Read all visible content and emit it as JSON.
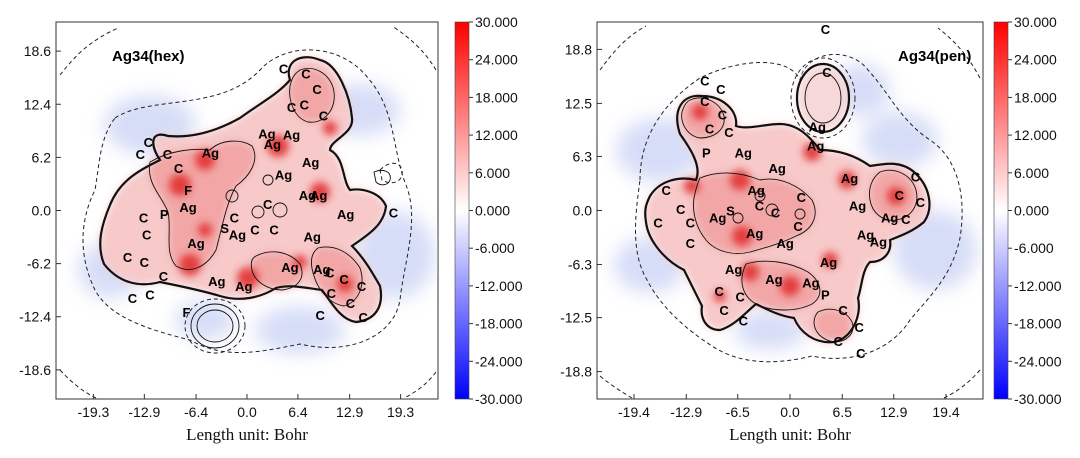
{
  "chart_data": [
    {
      "type": "heatmap",
      "title": "Ag34(hex)",
      "xlabel": "Length unit: Bohr",
      "ylabel": "",
      "xticks": [
        -19.3,
        -12.9,
        -6.4,
        0.0,
        6.4,
        12.9,
        19.3
      ],
      "yticks": [
        18.6,
        12.4,
        6.2,
        0.0,
        -6.2,
        -12.4,
        -18.6
      ],
      "xlim": [
        -24.0,
        24.0
      ],
      "ylim": [
        -22.0,
        22.0
      ],
      "colorbar": {
        "range": [
          -30.0,
          30.0
        ],
        "ticks": [
          30.0,
          24.0,
          18.0,
          12.0,
          6.0,
          0.0,
          -6.0,
          -12.0,
          -18.0,
          -24.0,
          -30.0
        ],
        "low_color": "#0000ff",
        "mid_color": "#ffffff",
        "high_color": "#ff0000"
      },
      "atom_labels": [
        {
          "label": "C",
          "x": 4.6,
          "y": 16.4
        },
        {
          "label": "C",
          "x": 7.4,
          "y": 15.8
        },
        {
          "label": "C",
          "x": 8.8,
          "y": 14.0
        },
        {
          "label": "C",
          "x": 5.6,
          "y": 11.9
        },
        {
          "label": "C",
          "x": 7.2,
          "y": 12.2
        },
        {
          "label": "C",
          "x": 9.6,
          "y": 10.9
        },
        {
          "label": "Ag",
          "x": 2.5,
          "y": 8.8
        },
        {
          "label": "Ag",
          "x": 5.6,
          "y": 8.7
        },
        {
          "label": "Ag",
          "x": 3.2,
          "y": 7.6
        },
        {
          "label": "Ag",
          "x": -4.6,
          "y": 6.6
        },
        {
          "label": "Ag",
          "x": 4.6,
          "y": 4.0
        },
        {
          "label": "Ag",
          "x": 8.0,
          "y": 5.5
        },
        {
          "label": "Ag",
          "x": 7.6,
          "y": 1.6
        },
        {
          "label": "Ag",
          "x": 9.0,
          "y": 1.6
        },
        {
          "label": "C",
          "x": -12.4,
          "y": 7.8
        },
        {
          "label": "C",
          "x": -13.4,
          "y": 6.4
        },
        {
          "label": "C",
          "x": -10.0,
          "y": 6.4
        },
        {
          "label": "C",
          "x": -8.6,
          "y": 4.8
        },
        {
          "label": "F",
          "x": -7.4,
          "y": 2.2
        },
        {
          "label": "Ag",
          "x": -7.4,
          "y": 0.2
        },
        {
          "label": "Ag",
          "x": -6.4,
          "y": -4.0
        },
        {
          "label": "C",
          "x": -13.0,
          "y": -1.0
        },
        {
          "label": "P",
          "x": -10.4,
          "y": -0.6
        },
        {
          "label": "C",
          "x": -12.6,
          "y": -3.0
        },
        {
          "label": "C",
          "x": -15.0,
          "y": -5.6
        },
        {
          "label": "C",
          "x": -12.9,
          "y": -6.2
        },
        {
          "label": "C",
          "x": -10.5,
          "y": -7.8
        },
        {
          "label": "C",
          "x": -14.4,
          "y": -10.4
        },
        {
          "label": "C",
          "x": -12.2,
          "y": -10.0
        },
        {
          "label": "F",
          "x": -7.6,
          "y": -12.0
        },
        {
          "label": "C",
          "x": -1.6,
          "y": -1.0
        },
        {
          "label": "S",
          "x": -2.8,
          "y": -2.2
        },
        {
          "label": "Ag",
          "x": -1.2,
          "y": -3.0
        },
        {
          "label": "C",
          "x": 1.0,
          "y": -2.4
        },
        {
          "label": "C",
          "x": 2.6,
          "y": 0.6
        },
        {
          "label": "C",
          "x": 3.4,
          "y": -2.4
        },
        {
          "label": "Ag",
          "x": 8.2,
          "y": -3.2
        },
        {
          "label": "Ag",
          "x": 12.4,
          "y": -0.6
        },
        {
          "label": "Ag",
          "x": 5.4,
          "y": -6.8
        },
        {
          "label": "Ag",
          "x": 9.4,
          "y": -7.0
        },
        {
          "label": "Ag",
          "x": -3.8,
          "y": -8.4
        },
        {
          "label": "Ag",
          "x": -0.4,
          "y": -9.0
        },
        {
          "label": "C",
          "x": 10.4,
          "y": -7.4
        },
        {
          "label": "C",
          "x": 12.2,
          "y": -8.2
        },
        {
          "label": "C",
          "x": 10.6,
          "y": -9.8
        },
        {
          "label": "C",
          "x": 14.4,
          "y": -9.0
        },
        {
          "label": "C",
          "x": 13.0,
          "y": -11.0
        },
        {
          "label": "C",
          "x": 14.6,
          "y": -12.6
        },
        {
          "label": "C",
          "x": 9.2,
          "y": -12.4
        },
        {
          "label": "C",
          "x": 18.4,
          "y": -0.4
        }
      ]
    },
    {
      "type": "heatmap",
      "title": "Ag34(pen)",
      "xlabel": "Length unit: Bohr",
      "ylabel": "",
      "xticks": [
        -19.4,
        -12.9,
        -6.5,
        0.0,
        6.5,
        12.9,
        19.4
      ],
      "yticks": [
        18.8,
        12.5,
        6.3,
        0.0,
        -6.3,
        -12.5,
        -18.8
      ],
      "xlim": [
        -24.0,
        24.0
      ],
      "ylim": [
        -22.0,
        22.0
      ],
      "colorbar": {
        "range": [
          -30.0,
          30.0
        ],
        "ticks": [
          30.0,
          24.0,
          18.0,
          12.0,
          6.0,
          0.0,
          -6.0,
          -12.0,
          -18.0,
          -24.0,
          -30.0
        ],
        "low_color": "#0000ff",
        "mid_color": "#ffffff",
        "high_color": "#ff0000"
      },
      "atom_labels": [
        {
          "label": "C",
          "x": 4.4,
          "y": 21.0
        },
        {
          "label": "C",
          "x": 4.6,
          "y": 16.0
        },
        {
          "label": "C",
          "x": -10.6,
          "y": 15.0
        },
        {
          "label": "C",
          "x": -8.6,
          "y": 14.0
        },
        {
          "label": "C",
          "x": -10.6,
          "y": 12.6
        },
        {
          "label": "C",
          "x": -8.4,
          "y": 11.0
        },
        {
          "label": "C",
          "x": -10.0,
          "y": 9.4
        },
        {
          "label": "C",
          "x": -7.6,
          "y": 9.0
        },
        {
          "label": "P",
          "x": -10.4,
          "y": 6.6
        },
        {
          "label": "Ag",
          "x": -5.8,
          "y": 6.6
        },
        {
          "label": "Ag",
          "x": 3.4,
          "y": 9.6
        },
        {
          "label": "Ag",
          "x": 3.2,
          "y": 7.4
        },
        {
          "label": "Ag",
          "x": -1.6,
          "y": 4.8
        },
        {
          "label": "Ag",
          "x": -4.2,
          "y": 2.2
        },
        {
          "label": "Ag",
          "x": 7.4,
          "y": 3.6
        },
        {
          "label": "Ag",
          "x": 8.4,
          "y": 0.4
        },
        {
          "label": "C",
          "x": -15.4,
          "y": 2.2
        },
        {
          "label": "C",
          "x": -13.6,
          "y": 0.0
        },
        {
          "label": "C",
          "x": -16.4,
          "y": -1.6
        },
        {
          "label": "C",
          "x": -12.4,
          "y": -1.6
        },
        {
          "label": "Ag",
          "x": -9.0,
          "y": -1.0
        },
        {
          "label": "C",
          "x": -12.4,
          "y": -4.0
        },
        {
          "label": "S",
          "x": -7.4,
          "y": -0.2
        },
        {
          "label": "C",
          "x": -3.8,
          "y": 0.4
        },
        {
          "label": "C",
          "x": -1.8,
          "y": -0.4
        },
        {
          "label": "C",
          "x": 1.4,
          "y": 1.4
        },
        {
          "label": "C",
          "x": 1.0,
          "y": -2.0
        },
        {
          "label": "Ag",
          "x": -4.4,
          "y": -2.8
        },
        {
          "label": "Ag",
          "x": -0.6,
          "y": -4.0
        },
        {
          "label": "Ag",
          "x": 9.4,
          "y": -3.0
        },
        {
          "label": "Ag",
          "x": 11.0,
          "y": -3.8
        },
        {
          "label": "Ag",
          "x": 12.4,
          "y": -1.0
        },
        {
          "label": "C",
          "x": 15.6,
          "y": 3.8
        },
        {
          "label": "C",
          "x": 13.6,
          "y": 1.6
        },
        {
          "label": "C",
          "x": 16.2,
          "y": 0.8
        },
        {
          "label": "C",
          "x": 14.4,
          "y": -1.2
        },
        {
          "label": "Ag",
          "x": 4.8,
          "y": -6.2
        },
        {
          "label": "Ag",
          "x": -7.0,
          "y": -7.0
        },
        {
          "label": "Ag",
          "x": -2.0,
          "y": -8.2
        },
        {
          "label": "Ag",
          "x": 2.6,
          "y": -8.6
        },
        {
          "label": "P",
          "x": 4.4,
          "y": -10.0
        },
        {
          "label": "C",
          "x": -8.8,
          "y": -9.6
        },
        {
          "label": "C",
          "x": -6.2,
          "y": -10.2
        },
        {
          "label": "C",
          "x": -8.2,
          "y": -11.8
        },
        {
          "label": "C",
          "x": -5.8,
          "y": -13.0
        },
        {
          "label": "C",
          "x": 6.6,
          "y": -11.8
        },
        {
          "label": "C",
          "x": 8.6,
          "y": -13.8
        },
        {
          "label": "C",
          "x": 6.0,
          "y": -15.4
        },
        {
          "label": "C",
          "x": 8.8,
          "y": -16.8
        }
      ]
    }
  ]
}
